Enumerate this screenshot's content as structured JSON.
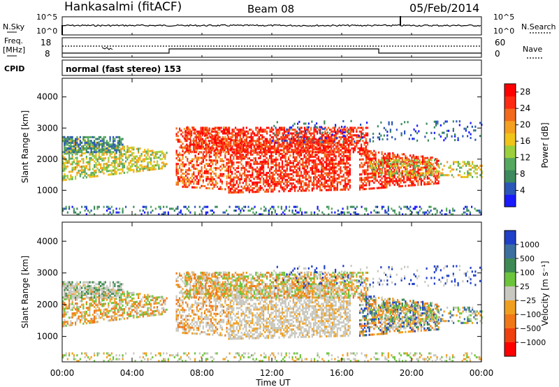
{
  "header": {
    "station": "Hankasalmi (fitACF)",
    "beam": "Beam 08",
    "date": "05/Feb/2014"
  },
  "sky_panel": {
    "label": "N.Sky",
    "left_top": "10^5",
    "left_bottom": "10^0",
    "right_top": "10^5",
    "right_bottom": "10^0",
    "right_label": "N.Search"
  },
  "freq_panel": {
    "label_line1": "Freq.",
    "label_line2": "[MHz]",
    "left_top": "18",
    "left_bottom": "8",
    "right_top": "60",
    "right_bottom": "0",
    "right_label": "Nave"
  },
  "cpid_panel": {
    "label": "CPID",
    "text": "normal (fast stereo) 153"
  },
  "colors": {
    "power": [
      "#1a1aff",
      "#2b57b8",
      "#3c8a5e",
      "#56a860",
      "#9ccf3c",
      "#f0c419",
      "#f4a021",
      "#f26a1b",
      "#ff2a12",
      "#ff0000"
    ],
    "velocity": [
      "#2040c8",
      "#3c6fa0",
      "#3e8a54",
      "#6cc43c",
      "#c8c8c0",
      "#f0a020",
      "#f07818",
      "#f04010",
      "#ff0000"
    ]
  },
  "chart_data": [
    {
      "type": "heatmap",
      "name": "Power",
      "ylabel": "Slant Range [km]",
      "yticks": [
        "1000",
        "2000",
        "3000",
        "4000"
      ],
      "ylim": [
        200,
        4600
      ],
      "xticks": [
        "00:00",
        "04:00",
        "08:00",
        "12:00",
        "16:00",
        "20:00",
        "00:00"
      ],
      "xlim_hours": [
        0,
        24
      ],
      "colorbar_label": "Power [dB]",
      "colorbar_ticks": [
        "4",
        "8",
        "12",
        "16",
        "20",
        "24",
        "28"
      ],
      "colorbar_range": [
        0,
        30
      ]
    },
    {
      "type": "heatmap",
      "name": "Velocity",
      "ylabel": "Slant Range [km]",
      "yticks": [
        "1000",
        "2000",
        "3000",
        "4000"
      ],
      "ylim": [
        200,
        4600
      ],
      "xticks": [
        "00:00",
        "04:00",
        "08:00",
        "12:00",
        "16:00",
        "20:00",
        "00:00"
      ],
      "xlabel": "Time UT",
      "xlim_hours": [
        0,
        24
      ],
      "colorbar_label": "Velocity [m s⁻¹]",
      "colorbar_ticks": [
        "1000",
        "500",
        "100",
        "25",
        "−25",
        "−100",
        "−500",
        "−1000"
      ]
    }
  ]
}
